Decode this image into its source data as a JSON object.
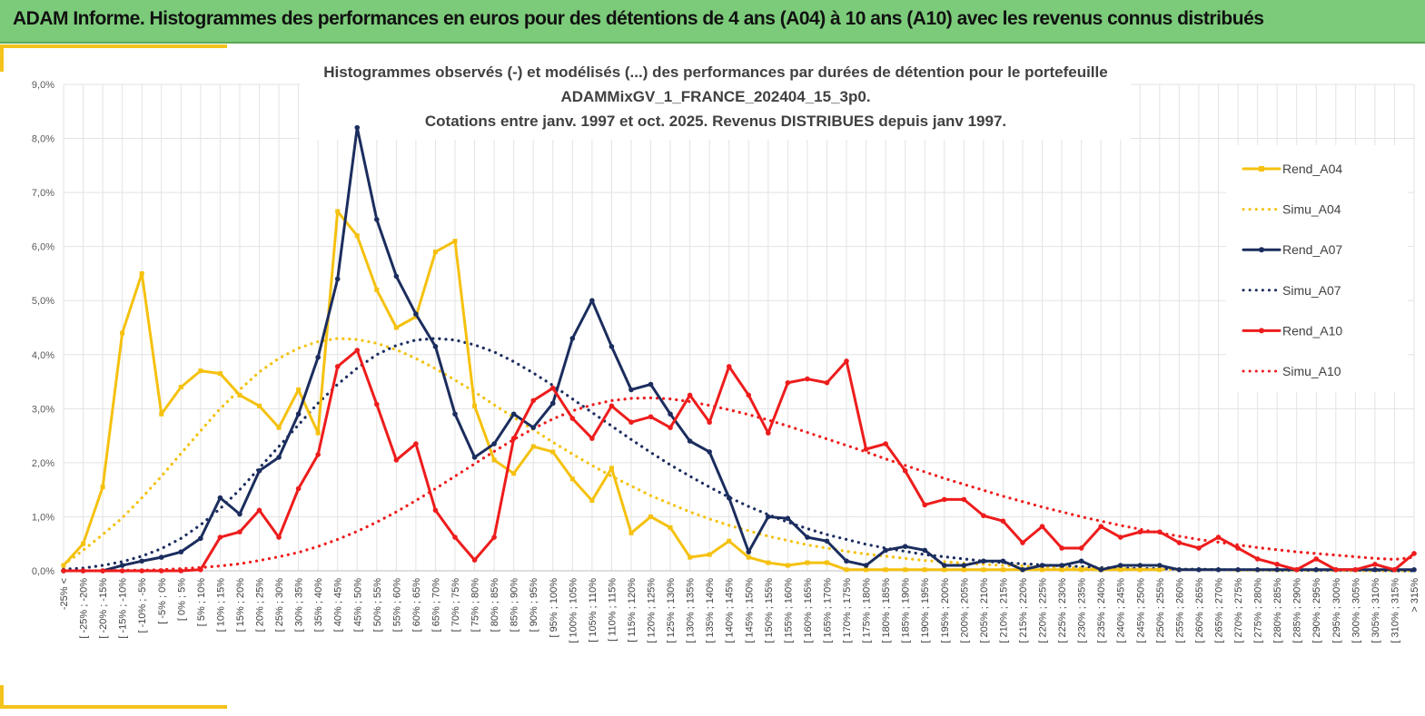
{
  "banner": {
    "title": "ADAM Informe. Histogrammes des performances en euros pour des détentions de 4 ans (A04) à 10 ans (A10) avec les revenus connus distribués"
  },
  "colors": {
    "banner_bg": "#7ccb7a",
    "accent": "#f4c21a",
    "A04": "#f5c10e",
    "A07": "#1b2d5e",
    "A10": "#ee1c1c",
    "grid": "#e3e3e3"
  },
  "chart_data": {
    "type": "line",
    "title_lines": [
      "Histogrammes observés (-) et modélisés (...) des performances par durées de détention pour le portefeuille",
      "ADAMMixGV_1_FRANCE_202404_15_3p0.",
      "Cotations entre janv. 1997 et oct. 2025. Revenus DISTRIBUES depuis janv 1997."
    ],
    "xlabel": "",
    "ylabel": "",
    "ylim": [
      0,
      9
    ],
    "y_unit": "%",
    "y_ticks": [
      "0,0%",
      "1,0%",
      "2,0%",
      "3,0%",
      "4,0%",
      "5,0%",
      "6,0%",
      "7,0%",
      "8,0%",
      "9,0%"
    ],
    "grid": true,
    "legend_position": "right",
    "categories": [
      "-25% <",
      "[ -25% ; -20%",
      "[ -20% ; -15%",
      "[ -15% ; -10%",
      "[ -10% ; -5%",
      "[ -5% ; 0%",
      "[ 0% ; 5%",
      "[ 5% ; 10%",
      "[ 10% ; 15%",
      "[ 15% ; 20%",
      "[ 20% ; 25%",
      "[ 25% ; 30%",
      "[ 30% ; 35%",
      "[ 35% ; 40%",
      "[ 40% ; 45%",
      "[ 45% ; 50%",
      "[ 50% ; 55%",
      "[ 55% ; 60%",
      "[ 60% ; 65%",
      "[ 65% ; 70%",
      "[ 70% ; 75%",
      "[ 75% ; 80%",
      "[ 80% ; 85%",
      "[ 85% ; 90%",
      "[ 90% ; 95%",
      "[ 95% ; 100%",
      "[ 100% ; 105%",
      "[ 105% ; 110%",
      "[ 110% ; 115%",
      "[ 115% ; 120%",
      "[ 120% ; 125%",
      "[ 125% ; 130%",
      "[ 130% ; 135%",
      "[ 135% ; 140%",
      "[ 140% ; 145%",
      "[ 145% ; 150%",
      "[ 150% ; 155%",
      "[ 155% ; 160%",
      "[ 160% ; 165%",
      "[ 165% ; 170%",
      "[ 170% ; 175%",
      "[ 175% ; 180%",
      "[ 180% ; 185%",
      "[ 185% ; 190%",
      "[ 190% ; 195%",
      "[ 195% ; 200%",
      "[ 200% ; 205%",
      "[ 205% ; 210%",
      "[ 210% ; 215%",
      "[ 215% ; 220%",
      "[ 220% ; 225%",
      "[ 225% ; 230%",
      "[ 230% ; 235%",
      "[ 235% ; 240%",
      "[ 240% ; 245%",
      "[ 245% ; 250%",
      "[ 250% ; 255%",
      "[ 255% ; 260%",
      "[ 260% ; 265%",
      "[ 265% ; 270%",
      "[ 270% ; 275%",
      "[ 275% ; 280%",
      "[ 280% ; 285%",
      "[ 285% ; 290%",
      "[ 290% ; 295%",
      "[ 295% ; 300%",
      "[ 300% ; 305%",
      "[ 305% ; 310%",
      "[ 310% ; 315%",
      "> 315%"
    ],
    "series": [
      {
        "name": "Rend_A04",
        "style": "solid",
        "marker": "square",
        "color": "#f5c10e",
        "values": [
          0.1,
          0.5,
          1.55,
          4.4,
          5.5,
          2.9,
          3.4,
          3.7,
          3.65,
          3.25,
          3.05,
          2.65,
          3.35,
          2.55,
          6.65,
          6.2,
          5.2,
          4.5,
          4.7,
          5.9,
          6.1,
          3.05,
          2.05,
          1.8,
          2.3,
          2.2,
          1.7,
          1.3,
          1.9,
          0.7,
          1.0,
          0.8,
          0.25,
          0.3,
          0.55,
          0.25,
          0.15,
          0.1,
          0.15,
          0.15,
          0.02,
          0.02,
          0.02,
          0.02,
          0.02,
          0.02,
          0.02,
          0.02,
          0.02,
          0.02,
          0.02,
          0.02,
          0.02,
          0.02,
          0.02,
          0.02,
          0.02,
          null,
          null,
          null,
          null,
          null,
          null,
          null,
          null,
          null,
          null,
          null,
          null,
          null
        ]
      },
      {
        "name": "Simu_A04",
        "style": "dotted",
        "marker": "none",
        "color": "#f5c10e",
        "values": [
          0.11,
          0.38,
          0.67,
          0.98,
          1.35,
          1.75,
          2.17,
          2.59,
          3.0,
          3.35,
          3.68,
          3.93,
          4.12,
          4.24,
          4.3,
          4.28,
          4.21,
          4.09,
          3.93,
          3.74,
          3.53,
          3.31,
          3.07,
          2.84,
          2.61,
          2.38,
          2.16,
          1.95,
          1.75,
          1.57,
          1.39,
          1.24,
          1.09,
          0.96,
          0.84,
          0.74,
          0.64,
          0.56,
          0.48,
          0.42,
          0.36,
          0.31,
          0.27,
          0.23,
          0.19,
          0.17,
          0.14,
          0.12,
          0.1,
          0.09,
          0.07,
          0.06,
          0.05,
          0.04,
          0.04,
          0.03,
          0.03,
          0.02,
          0.02,
          0.02,
          0.01,
          0.01,
          0.01,
          0.01,
          0.01,
          0.01,
          0.0,
          0.0,
          0.0,
          0.0
        ]
      },
      {
        "name": "Rend_A07",
        "style": "solid",
        "marker": "circle",
        "color": "#1b2d5e",
        "values": [
          0.0,
          0.0,
          0.0,
          0.1,
          0.18,
          0.25,
          0.35,
          0.6,
          1.35,
          1.05,
          1.85,
          2.1,
          2.9,
          3.95,
          5.4,
          8.2,
          6.5,
          5.45,
          4.75,
          4.15,
          2.9,
          2.1,
          2.35,
          2.9,
          2.65,
          3.1,
          4.3,
          5.0,
          4.15,
          3.35,
          3.45,
          2.9,
          2.4,
          2.2,
          1.35,
          0.35,
          1.0,
          0.97,
          0.62,
          0.55,
          0.18,
          0.1,
          0.38,
          0.45,
          0.38,
          0.1,
          0.1,
          0.18,
          0.18,
          0.02,
          0.1,
          0.1,
          0.18,
          0.02,
          0.1,
          0.1,
          0.1,
          0.02,
          0.02,
          0.02,
          0.02,
          0.02,
          0.02,
          0.02,
          0.02,
          0.02,
          0.02,
          0.02,
          0.02,
          0.02
        ]
      },
      {
        "name": "Simu_A07",
        "style": "dotted",
        "marker": "none",
        "color": "#1b2d5e",
        "values": [
          0.03,
          0.05,
          0.1,
          0.17,
          0.27,
          0.41,
          0.6,
          0.85,
          1.15,
          1.5,
          1.9,
          2.3,
          2.7,
          3.1,
          3.45,
          3.75,
          4.0,
          4.17,
          4.27,
          4.3,
          4.27,
          4.18,
          4.05,
          3.87,
          3.66,
          3.43,
          3.18,
          2.93,
          2.68,
          2.43,
          2.19,
          1.96,
          1.75,
          1.55,
          1.36,
          1.19,
          1.04,
          0.9,
          0.78,
          0.67,
          0.58,
          0.49,
          0.42,
          0.36,
          0.3,
          0.26,
          0.22,
          0.18,
          0.15,
          0.13,
          0.11,
          0.09,
          0.08,
          0.06,
          0.05,
          0.04,
          0.04,
          0.03,
          0.03,
          0.02,
          0.02,
          0.02,
          0.01,
          0.01,
          0.01,
          0.01,
          0.01,
          0.01,
          0.0,
          0.0
        ]
      },
      {
        "name": "Rend_A10",
        "style": "solid",
        "marker": "circle",
        "color": "#ee1c1c",
        "values": [
          0.0,
          0.0,
          0.0,
          0.0,
          0.0,
          0.0,
          0.0,
          0.02,
          0.62,
          0.72,
          1.12,
          0.62,
          1.52,
          2.15,
          3.78,
          4.08,
          3.08,
          2.05,
          2.35,
          1.12,
          0.62,
          0.2,
          0.62,
          2.45,
          3.15,
          3.38,
          2.82,
          2.45,
          3.05,
          2.75,
          2.85,
          2.65,
          3.25,
          2.75,
          3.78,
          3.25,
          2.55,
          3.48,
          3.55,
          3.48,
          3.88,
          2.25,
          2.35,
          1.85,
          1.22,
          1.32,
          1.32,
          1.02,
          0.92,
          0.52,
          0.82,
          0.42,
          0.42,
          0.82,
          0.62,
          0.72,
          0.72,
          0.52,
          0.42,
          0.62,
          0.42,
          0.22,
          0.12,
          0.02,
          0.22,
          0.02,
          0.02,
          0.12,
          0.02,
          0.32
        ]
      },
      {
        "name": "Simu_A10",
        "style": "dotted",
        "marker": "none",
        "color": "#ee1c1c",
        "values": [
          0.0,
          0.0,
          0.0,
          0.01,
          0.01,
          0.02,
          0.04,
          0.06,
          0.09,
          0.13,
          0.19,
          0.26,
          0.34,
          0.45,
          0.58,
          0.73,
          0.9,
          1.09,
          1.3,
          1.52,
          1.75,
          1.98,
          2.21,
          2.43,
          2.63,
          2.81,
          2.96,
          3.07,
          3.15,
          3.19,
          3.2,
          3.18,
          3.13,
          3.06,
          2.98,
          2.89,
          2.79,
          2.68,
          2.56,
          2.44,
          2.32,
          2.2,
          2.07,
          1.95,
          1.83,
          1.71,
          1.6,
          1.49,
          1.38,
          1.28,
          1.18,
          1.09,
          1.0,
          0.92,
          0.84,
          0.77,
          0.7,
          0.64,
          0.58,
          0.53,
          0.48,
          0.43,
          0.39,
          0.35,
          0.32,
          0.29,
          0.26,
          0.23,
          0.21,
          0.25
        ]
      }
    ]
  }
}
